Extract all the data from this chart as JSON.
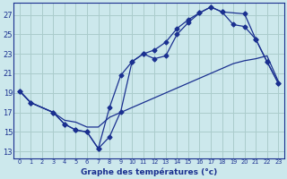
{
  "title": "Graphe des températures (°c)",
  "bg_color": "#cce8ec",
  "grid_color": "#aacccc",
  "line_color": "#1a3090",
  "x_ticks": [
    0,
    1,
    2,
    3,
    4,
    5,
    6,
    7,
    8,
    9,
    10,
    11,
    12,
    13,
    14,
    15,
    16,
    17,
    18,
    19,
    20,
    21,
    22,
    23
  ],
  "y_ticks": [
    13,
    15,
    17,
    19,
    21,
    23,
    25,
    27
  ],
  "xlim": [
    -0.5,
    23.5
  ],
  "ylim": [
    12.3,
    28.2
  ],
  "line1_x": [
    0,
    1,
    3,
    4,
    5,
    6,
    7,
    8,
    9,
    10,
    11,
    12,
    13,
    14,
    15,
    16,
    17,
    18,
    20,
    21,
    22,
    23
  ],
  "line1_y": [
    19.2,
    18.0,
    17.0,
    15.8,
    15.2,
    15.0,
    13.3,
    14.5,
    17.1,
    22.2,
    23.0,
    22.5,
    22.8,
    25.0,
    26.2,
    27.2,
    27.8,
    27.3,
    27.1,
    24.5,
    22.2,
    20.0
  ],
  "line2_x": [
    0,
    1,
    3,
    4,
    5,
    6,
    7,
    8,
    9,
    10,
    11,
    12,
    13,
    14,
    15,
    16,
    17,
    18,
    19,
    20,
    21,
    22,
    23
  ],
  "line2_y": [
    19.2,
    18.0,
    17.0,
    15.8,
    15.2,
    15.0,
    13.3,
    17.5,
    20.8,
    22.2,
    23.0,
    23.4,
    24.2,
    25.6,
    26.5,
    27.2,
    27.8,
    27.3,
    26.0,
    25.8,
    24.5,
    22.2,
    20.0
  ],
  "line3_x": [
    0,
    1,
    3,
    4,
    5,
    6,
    7,
    8,
    9,
    10,
    11,
    12,
    13,
    14,
    15,
    16,
    17,
    18,
    19,
    20,
    21,
    22,
    23
  ],
  "line3_y": [
    19.2,
    18.0,
    17.0,
    16.2,
    16.0,
    15.5,
    15.5,
    16.5,
    17.0,
    17.5,
    18.0,
    18.5,
    19.0,
    19.5,
    20.0,
    20.5,
    21.0,
    21.5,
    22.0,
    22.3,
    22.5,
    22.8,
    20.2
  ]
}
